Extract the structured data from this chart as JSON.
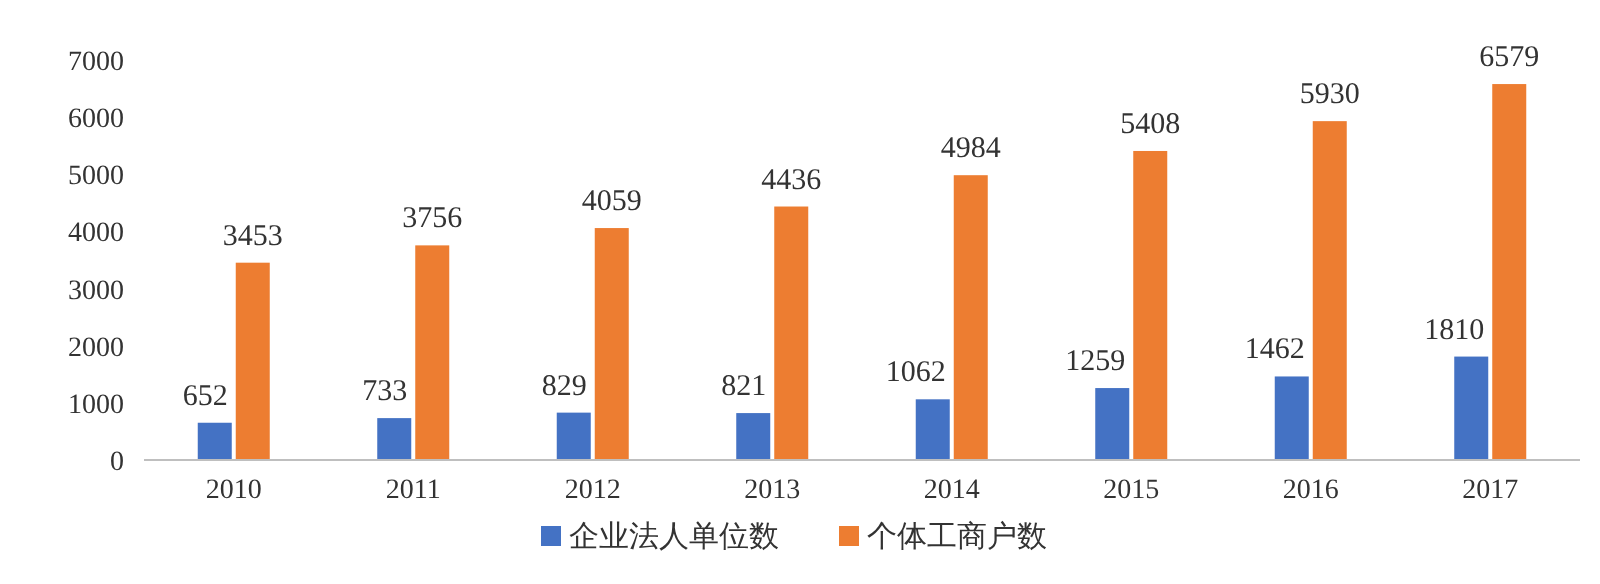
{
  "chart_data": {
    "type": "bar",
    "categories": [
      "2010",
      "2011",
      "2012",
      "2013",
      "2014",
      "2015",
      "2016",
      "2017"
    ],
    "series": [
      {
        "name": "企业法人单位数",
        "color": "#4472c4",
        "values": [
          652,
          733,
          829,
          821,
          1062,
          1259,
          1462,
          1810
        ]
      },
      {
        "name": "个体工商户数",
        "color": "#ed7d31",
        "values": [
          3453,
          3756,
          4059,
          4436,
          4984,
          5408,
          5930,
          6579
        ]
      }
    ],
    "ylim": [
      0,
      7000
    ],
    "yticks": [
      0,
      1000,
      2000,
      3000,
      4000,
      5000,
      6000,
      7000
    ],
    "data_labels": true,
    "legend": "bottom"
  }
}
